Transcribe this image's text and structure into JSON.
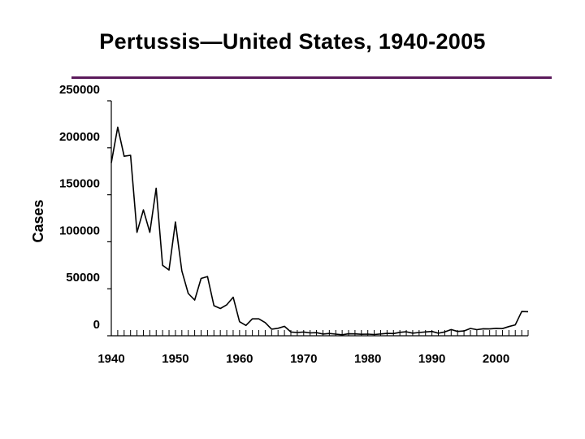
{
  "slide": {
    "title": "Pertussis—United States, 1940-2005",
    "rule_color": "#5b1a5b"
  },
  "chart_data": {
    "type": "line",
    "title": "Pertussis—United States, 1940-2005",
    "xlabel": "",
    "ylabel": "Cases",
    "xlim": [
      1940,
      2005
    ],
    "ylim": [
      0,
      250000
    ],
    "xticks": [
      1940,
      1950,
      1960,
      1970,
      1980,
      1990,
      2000
    ],
    "yticks": [
      0,
      50000,
      100000,
      150000,
      200000,
      250000
    ],
    "grid": false,
    "legend": "none",
    "line_color": "#000000",
    "series": [
      {
        "x": [
          1940,
          1941,
          1942,
          1943,
          1944,
          1945,
          1946,
          1947,
          1948,
          1949,
          1950,
          1951,
          1952,
          1953,
          1954,
          1955,
          1956,
          1957,
          1958,
          1959,
          1960,
          1961,
          1962,
          1963,
          1964,
          1965,
          1966,
          1967,
          1968,
          1969,
          1970,
          1971,
          1972,
          1973,
          1974,
          1975,
          1976,
          1977,
          1978,
          1979,
          1980,
          1981,
          1982,
          1983,
          1984,
          1985,
          1986,
          1987,
          1988,
          1989,
          1990,
          1991,
          1992,
          1993,
          1994,
          1995,
          1996,
          1997,
          1998,
          1999,
          2000,
          2001,
          2002,
          2003,
          2004,
          2005
        ],
        "values": [
          184000,
          222000,
          191000,
          192000,
          110000,
          134000,
          110000,
          157000,
          75000,
          70000,
          121000,
          69000,
          45000,
          38000,
          61000,
          63000,
          32000,
          29000,
          33000,
          41000,
          15000,
          11000,
          18000,
          18000,
          14000,
          7000,
          8000,
          10000,
          4000,
          3500,
          4000,
          3000,
          3300,
          1800,
          2400,
          1700,
          1000,
          2100,
          2000,
          1600,
          1700,
          1300,
          1900,
          2500,
          2300,
          3600,
          4200,
          2800,
          3500,
          4100,
          4600,
          2700,
          4100,
          6600,
          4600,
          5100,
          7800,
          6500,
          7400,
          7300,
          7900,
          7600,
          9800,
          11600,
          25800,
          25600
        ]
      }
    ]
  }
}
